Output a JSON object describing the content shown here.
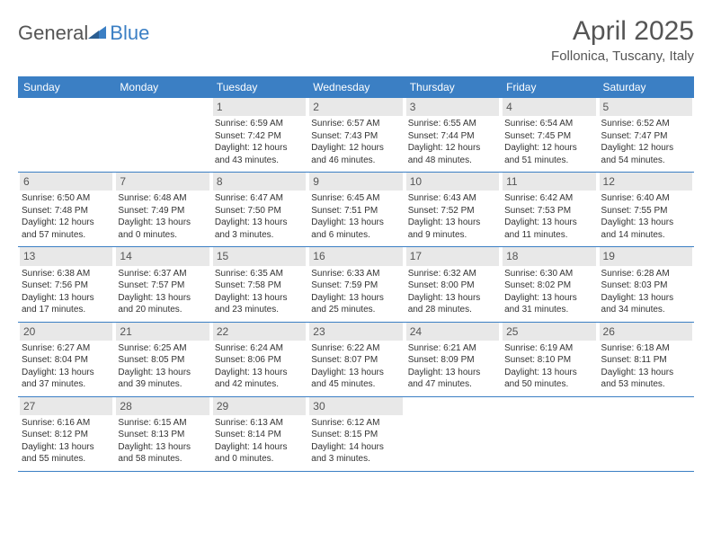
{
  "brand": {
    "part1": "General",
    "part2": "Blue"
  },
  "title": "April 2025",
  "location": "Follonica, Tuscany, Italy",
  "colors": {
    "header_bg": "#3b7fc4",
    "header_text": "#ffffff",
    "daynum_bg": "#e8e8e8",
    "text": "#333333",
    "row_border": "#3b7fc4"
  },
  "day_headers": [
    "Sunday",
    "Monday",
    "Tuesday",
    "Wednesday",
    "Thursday",
    "Friday",
    "Saturday"
  ],
  "weeks": [
    [
      null,
      null,
      {
        "d": "1",
        "sr": "6:59 AM",
        "ss": "7:42 PM",
        "dl": "12 hours and 43 minutes."
      },
      {
        "d": "2",
        "sr": "6:57 AM",
        "ss": "7:43 PM",
        "dl": "12 hours and 46 minutes."
      },
      {
        "d": "3",
        "sr": "6:55 AM",
        "ss": "7:44 PM",
        "dl": "12 hours and 48 minutes."
      },
      {
        "d": "4",
        "sr": "6:54 AM",
        "ss": "7:45 PM",
        "dl": "12 hours and 51 minutes."
      },
      {
        "d": "5",
        "sr": "6:52 AM",
        "ss": "7:47 PM",
        "dl": "12 hours and 54 minutes."
      }
    ],
    [
      {
        "d": "6",
        "sr": "6:50 AM",
        "ss": "7:48 PM",
        "dl": "12 hours and 57 minutes."
      },
      {
        "d": "7",
        "sr": "6:48 AM",
        "ss": "7:49 PM",
        "dl": "13 hours and 0 minutes."
      },
      {
        "d": "8",
        "sr": "6:47 AM",
        "ss": "7:50 PM",
        "dl": "13 hours and 3 minutes."
      },
      {
        "d": "9",
        "sr": "6:45 AM",
        "ss": "7:51 PM",
        "dl": "13 hours and 6 minutes."
      },
      {
        "d": "10",
        "sr": "6:43 AM",
        "ss": "7:52 PM",
        "dl": "13 hours and 9 minutes."
      },
      {
        "d": "11",
        "sr": "6:42 AM",
        "ss": "7:53 PM",
        "dl": "13 hours and 11 minutes."
      },
      {
        "d": "12",
        "sr": "6:40 AM",
        "ss": "7:55 PM",
        "dl": "13 hours and 14 minutes."
      }
    ],
    [
      {
        "d": "13",
        "sr": "6:38 AM",
        "ss": "7:56 PM",
        "dl": "13 hours and 17 minutes."
      },
      {
        "d": "14",
        "sr": "6:37 AM",
        "ss": "7:57 PM",
        "dl": "13 hours and 20 minutes."
      },
      {
        "d": "15",
        "sr": "6:35 AM",
        "ss": "7:58 PM",
        "dl": "13 hours and 23 minutes."
      },
      {
        "d": "16",
        "sr": "6:33 AM",
        "ss": "7:59 PM",
        "dl": "13 hours and 25 minutes."
      },
      {
        "d": "17",
        "sr": "6:32 AM",
        "ss": "8:00 PM",
        "dl": "13 hours and 28 minutes."
      },
      {
        "d": "18",
        "sr": "6:30 AM",
        "ss": "8:02 PM",
        "dl": "13 hours and 31 minutes."
      },
      {
        "d": "19",
        "sr": "6:28 AM",
        "ss": "8:03 PM",
        "dl": "13 hours and 34 minutes."
      }
    ],
    [
      {
        "d": "20",
        "sr": "6:27 AM",
        "ss": "8:04 PM",
        "dl": "13 hours and 37 minutes."
      },
      {
        "d": "21",
        "sr": "6:25 AM",
        "ss": "8:05 PM",
        "dl": "13 hours and 39 minutes."
      },
      {
        "d": "22",
        "sr": "6:24 AM",
        "ss": "8:06 PM",
        "dl": "13 hours and 42 minutes."
      },
      {
        "d": "23",
        "sr": "6:22 AM",
        "ss": "8:07 PM",
        "dl": "13 hours and 45 minutes."
      },
      {
        "d": "24",
        "sr": "6:21 AM",
        "ss": "8:09 PM",
        "dl": "13 hours and 47 minutes."
      },
      {
        "d": "25",
        "sr": "6:19 AM",
        "ss": "8:10 PM",
        "dl": "13 hours and 50 minutes."
      },
      {
        "d": "26",
        "sr": "6:18 AM",
        "ss": "8:11 PM",
        "dl": "13 hours and 53 minutes."
      }
    ],
    [
      {
        "d": "27",
        "sr": "6:16 AM",
        "ss": "8:12 PM",
        "dl": "13 hours and 55 minutes."
      },
      {
        "d": "28",
        "sr": "6:15 AM",
        "ss": "8:13 PM",
        "dl": "13 hours and 58 minutes."
      },
      {
        "d": "29",
        "sr": "6:13 AM",
        "ss": "8:14 PM",
        "dl": "14 hours and 0 minutes."
      },
      {
        "d": "30",
        "sr": "6:12 AM",
        "ss": "8:15 PM",
        "dl": "14 hours and 3 minutes."
      },
      null,
      null,
      null
    ]
  ],
  "labels": {
    "sunrise": "Sunrise: ",
    "sunset": "Sunset: ",
    "daylight": "Daylight: "
  }
}
